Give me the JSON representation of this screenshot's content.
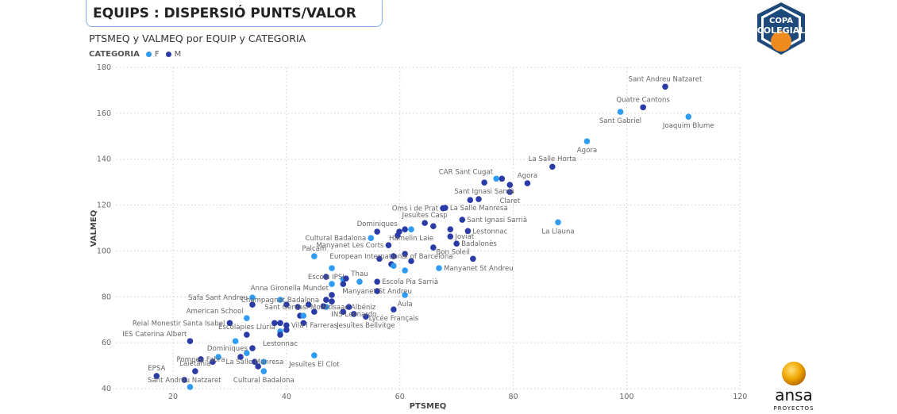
{
  "header": {
    "title": "EQUIPS : DISPERSIÓ PUNTS/VALOR",
    "subtitle": "PTSMEQ y VALMEQ por EQUIP y CATEGORIA"
  },
  "logos": {
    "copa": [
      "COPA",
      "COLEGIAL"
    ],
    "ansa": [
      "ansa",
      "PROYECTOS"
    ]
  },
  "colors": {
    "F": "#2e9bf5",
    "M": "#2a3aa6",
    "grid": "#cfcfcf"
  },
  "chart_data": {
    "type": "scatter",
    "title": "PTSMEQ y VALMEQ por EQUIP y CATEGORIA",
    "xlabel": "PTSMEQ",
    "ylabel": "VALMEQ",
    "xlim": [
      10,
      120
    ],
    "ylim": [
      40,
      180
    ],
    "xticks": [
      20,
      40,
      60,
      80,
      100,
      120
    ],
    "yticks": [
      40,
      60,
      80,
      100,
      120,
      140,
      160,
      180
    ],
    "legend": {
      "title": "CATEGORIA",
      "entries": [
        "F",
        "M"
      ],
      "placement": "top-left"
    },
    "points": [
      {
        "x": 106.8,
        "y": 171.6,
        "c": "M",
        "label": "Sant Andreu Natzaret",
        "anchor": "t"
      },
      {
        "x": 102.9,
        "y": 162.6,
        "c": "M",
        "label": "Quatre Cantons",
        "anchor": "t"
      },
      {
        "x": 98.9,
        "y": 160.6,
        "c": "F",
        "label": "Sant Gabriel",
        "anchor": "b"
      },
      {
        "x": 110.9,
        "y": 158.5,
        "c": "F",
        "label": "Joaquim Blume",
        "anchor": "b"
      },
      {
        "x": 93.0,
        "y": 147.8,
        "c": "F",
        "label": "Agora",
        "anchor": "b"
      },
      {
        "x": 86.9,
        "y": 136.7,
        "c": "M",
        "label": "La Salle Horta",
        "anchor": "t"
      },
      {
        "x": 77.0,
        "y": 131.5,
        "c": "F",
        "label": "CAR Sant Cugat",
        "anchor": "tl"
      },
      {
        "x": 78.0,
        "y": 131.5,
        "c": "M",
        "label": "",
        "anchor": "t"
      },
      {
        "x": 74.9,
        "y": 129.8,
        "c": "M",
        "label": "Sant Ignasi Sarrià",
        "anchor": "b"
      },
      {
        "x": 79.4,
        "y": 128.8,
        "c": "M",
        "label": "",
        "anchor": "t"
      },
      {
        "x": 82.5,
        "y": 129.5,
        "c": "M",
        "label": "Agora",
        "anchor": "t"
      },
      {
        "x": 79.4,
        "y": 125.7,
        "c": "M",
        "label": "Claret",
        "anchor": "b"
      },
      {
        "x": 72.4,
        "y": 122.2,
        "c": "M",
        "label": "",
        "anchor": "t"
      },
      {
        "x": 73.9,
        "y": 122.6,
        "c": "M",
        "label": "",
        "anchor": "t"
      },
      {
        "x": 67.6,
        "y": 118.6,
        "c": "M",
        "label": "Oms i de Prat",
        "anchor": "l"
      },
      {
        "x": 68.0,
        "y": 118.8,
        "c": "M",
        "label": "La Salle Manresa",
        "anchor": "r"
      },
      {
        "x": 87.9,
        "y": 112.5,
        "c": "F",
        "label": "La Llauna",
        "anchor": "b"
      },
      {
        "x": 71.0,
        "y": 113.6,
        "c": "M",
        "label": "Sant Ignasi Sarrià",
        "anchor": "r"
      },
      {
        "x": 72.0,
        "y": 108.7,
        "c": "M",
        "label": "Lestonnac",
        "anchor": "r"
      },
      {
        "x": 64.4,
        "y": 112.2,
        "c": "M",
        "label": "Jesuïtes Casp",
        "anchor": "t"
      },
      {
        "x": 65.9,
        "y": 110.8,
        "c": "M",
        "label": "",
        "anchor": "t"
      },
      {
        "x": 68.9,
        "y": 109.4,
        "c": "M",
        "label": "",
        "anchor": "t"
      },
      {
        "x": 68.9,
        "y": 106.3,
        "c": "M",
        "label": "Joviat",
        "anchor": "r"
      },
      {
        "x": 70.0,
        "y": 103.2,
        "c": "M",
        "label": "Badalonès",
        "anchor": "r"
      },
      {
        "x": 65.9,
        "y": 101.5,
        "c": "M",
        "label": "",
        "anchor": "t"
      },
      {
        "x": 56.0,
        "y": 108.4,
        "c": "M",
        "label": "Dominiques",
        "anchor": "t"
      },
      {
        "x": 59.9,
        "y": 108.4,
        "c": "M",
        "label": "",
        "anchor": "t"
      },
      {
        "x": 60.9,
        "y": 109.4,
        "c": "M",
        "label": "",
        "anchor": "t"
      },
      {
        "x": 62.0,
        "y": 109.4,
        "c": "F",
        "label": "Hamelin Laie",
        "anchor": "b"
      },
      {
        "x": 59.6,
        "y": 106.7,
        "c": "M",
        "label": "",
        "anchor": "t"
      },
      {
        "x": 54.9,
        "y": 105.6,
        "c": "F",
        "label": "Cultural Badalona",
        "anchor": "l"
      },
      {
        "x": 58.0,
        "y": 102.5,
        "c": "M",
        "label": "Manyanet Les Corts",
        "anchor": "l"
      },
      {
        "x": 72.9,
        "y": 96.6,
        "c": "M",
        "label": "Bon Soleil",
        "anchor": "tl"
      },
      {
        "x": 66.9,
        "y": 92.5,
        "c": "F",
        "label": "Manyanet St Andreu",
        "anchor": "r"
      },
      {
        "x": 56.4,
        "y": 96.6,
        "c": "M",
        "label": "",
        "anchor": "t"
      },
      {
        "x": 58.9,
        "y": 97.7,
        "c": "M",
        "label": "",
        "anchor": "t"
      },
      {
        "x": 60.9,
        "y": 98.7,
        "c": "M",
        "label": "",
        "anchor": "t"
      },
      {
        "x": 62.0,
        "y": 95.6,
        "c": "M",
        "label": "",
        "anchor": "t"
      },
      {
        "x": 58.5,
        "y": 94.2,
        "c": "M",
        "label": "European International of Barcelona",
        "anchor": "t"
      },
      {
        "x": 58.9,
        "y": 93.5,
        "c": "F",
        "label": "",
        "anchor": "t"
      },
      {
        "x": 60.9,
        "y": 91.5,
        "c": "F",
        "label": "",
        "anchor": "t"
      },
      {
        "x": 48.0,
        "y": 92.5,
        "c": "F",
        "label": "",
        "anchor": "t"
      },
      {
        "x": 44.9,
        "y": 97.7,
        "c": "F",
        "label": "Palcam",
        "anchor": "t"
      },
      {
        "x": 47.0,
        "y": 88.7,
        "c": "M",
        "label": "Escola IPSI",
        "anchor": "c"
      },
      {
        "x": 50.0,
        "y": 87.7,
        "c": "F",
        "label": "",
        "anchor": "t"
      },
      {
        "x": 50.5,
        "y": 88.0,
        "c": "M",
        "label": "",
        "anchor": "t"
      },
      {
        "x": 50.0,
        "y": 85.6,
        "c": "M",
        "label": "",
        "anchor": "t"
      },
      {
        "x": 48.0,
        "y": 85.6,
        "c": "F",
        "label": "",
        "anchor": "t"
      },
      {
        "x": 52.9,
        "y": 86.6,
        "c": "F",
        "label": "Thau",
        "anchor": "t"
      },
      {
        "x": 56.0,
        "y": 86.6,
        "c": "M",
        "label": "Escola Pia Sarrià",
        "anchor": "r"
      },
      {
        "x": 56.0,
        "y": 82.5,
        "c": "M",
        "label": "Manyanet St Andreu",
        "anchor": "c"
      },
      {
        "x": 60.9,
        "y": 80.8,
        "c": "F",
        "label": "Aula",
        "anchor": "b"
      },
      {
        "x": 58.9,
        "y": 74.5,
        "c": "M",
        "label": "Lycée Français",
        "anchor": "b"
      },
      {
        "x": 48.0,
        "y": 80.8,
        "c": "M",
        "label": "Anna Gironella Mundet",
        "anchor": "tl"
      },
      {
        "x": 47.0,
        "y": 78.7,
        "c": "M",
        "label": "",
        "anchor": "t"
      },
      {
        "x": 48.0,
        "y": 78.0,
        "c": "M",
        "label": "",
        "anchor": "t"
      },
      {
        "x": 51.0,
        "y": 75.6,
        "c": "M",
        "label": "",
        "anchor": "t"
      },
      {
        "x": 47.0,
        "y": 75.6,
        "c": "F",
        "label": "Isaac Albéniz",
        "anchor": "r"
      },
      {
        "x": 46.5,
        "y": 75.9,
        "c": "M",
        "label": "",
        "anchor": "t"
      },
      {
        "x": 50.0,
        "y": 73.5,
        "c": "M",
        "label": "",
        "anchor": "t"
      },
      {
        "x": 51.9,
        "y": 72.5,
        "c": "M",
        "label": "INS Leonardo",
        "anchor": "c"
      },
      {
        "x": 54.0,
        "y": 71.4,
        "c": "M",
        "label": "Jesuïtes Bellvitge",
        "anchor": "b"
      },
      {
        "x": 44.9,
        "y": 73.5,
        "c": "M",
        "label": "",
        "anchor": "t"
      },
      {
        "x": 43.9,
        "y": 76.6,
        "c": "M",
        "label": "",
        "anchor": "t"
      },
      {
        "x": 42.0,
        "y": 75.6,
        "c": "M",
        "label": "Sant Gervasi Mollet",
        "anchor": "c"
      },
      {
        "x": 44.9,
        "y": 54.5,
        "c": "F",
        "label": "Jesuïtes El Clot",
        "anchor": "b"
      },
      {
        "x": 34.0,
        "y": 79.7,
        "c": "F",
        "label": "Safa Sant Andreu",
        "anchor": "l"
      },
      {
        "x": 34.0,
        "y": 76.6,
        "c": "M",
        "label": "",
        "anchor": "t"
      },
      {
        "x": 38.9,
        "y": 78.7,
        "c": "F",
        "label": "Champagnat Badalona",
        "anchor": "c"
      },
      {
        "x": 40.0,
        "y": 76.6,
        "c": "M",
        "label": "",
        "anchor": "t"
      },
      {
        "x": 42.4,
        "y": 71.8,
        "c": "M",
        "label": "",
        "anchor": "t"
      },
      {
        "x": 43.0,
        "y": 71.8,
        "c": "F",
        "label": "",
        "anchor": "t"
      },
      {
        "x": 33.0,
        "y": 70.7,
        "c": "F",
        "label": "American School",
        "anchor": "tl"
      },
      {
        "x": 30.0,
        "y": 68.6,
        "c": "M",
        "label": "Reial Monestir Santa Isabel",
        "anchor": "l"
      },
      {
        "x": 33.0,
        "y": 63.5,
        "c": "M",
        "label": "Escolàpies Llúria",
        "anchor": "t"
      },
      {
        "x": 37.9,
        "y": 68.6,
        "c": "M",
        "label": "",
        "anchor": "t"
      },
      {
        "x": 38.9,
        "y": 68.6,
        "c": "M",
        "label": "",
        "anchor": "t"
      },
      {
        "x": 40.0,
        "y": 67.6,
        "c": "M",
        "label": "Vila i Farreras",
        "anchor": "r"
      },
      {
        "x": 40.0,
        "y": 65.6,
        "c": "M",
        "label": "",
        "anchor": "t"
      },
      {
        "x": 43.0,
        "y": 68.6,
        "c": "M",
        "label": "",
        "anchor": "t"
      },
      {
        "x": 38.9,
        "y": 64.9,
        "c": "F",
        "label": "",
        "anchor": "t"
      },
      {
        "x": 38.9,
        "y": 63.5,
        "c": "M",
        "label": "Lestonnac",
        "anchor": "b"
      },
      {
        "x": 23.0,
        "y": 60.7,
        "c": "M",
        "label": "IES Caterina Albert",
        "anchor": "tl"
      },
      {
        "x": 31.0,
        "y": 60.7,
        "c": "F",
        "label": "",
        "anchor": "t"
      },
      {
        "x": 34.0,
        "y": 57.6,
        "c": "M",
        "label": "Dominiques",
        "anchor": "l"
      },
      {
        "x": 33.0,
        "y": 55.5,
        "c": "F",
        "label": "",
        "anchor": "t"
      },
      {
        "x": 24.9,
        "y": 52.8,
        "c": "M",
        "label": "Pompeu Fabra",
        "anchor": "c"
      },
      {
        "x": 28.0,
        "y": 53.8,
        "c": "F",
        "label": "",
        "anchor": "t"
      },
      {
        "x": 27.0,
        "y": 51.7,
        "c": "M",
        "label": "",
        "anchor": "t"
      },
      {
        "x": 31.9,
        "y": 53.8,
        "c": "M",
        "label": "",
        "anchor": "t"
      },
      {
        "x": 34.4,
        "y": 51.7,
        "c": "M",
        "label": "La Salle Manresa",
        "anchor": "c"
      },
      {
        "x": 36.0,
        "y": 51.7,
        "c": "F",
        "label": "",
        "anchor": "t"
      },
      {
        "x": 35.0,
        "y": 49.7,
        "c": "M",
        "label": "",
        "anchor": "t"
      },
      {
        "x": 36.0,
        "y": 47.6,
        "c": "F",
        "label": "Cultural Badalona",
        "anchor": "b"
      },
      {
        "x": 23.9,
        "y": 47.6,
        "c": "M",
        "label": "Laietània",
        "anchor": "t"
      },
      {
        "x": 17.1,
        "y": 45.5,
        "c": "M",
        "label": "EPSA",
        "anchor": "t"
      },
      {
        "x": 22.0,
        "y": 43.8,
        "c": "M",
        "label": "Sant Andreu Natzaret",
        "anchor": "c"
      },
      {
        "x": 23.0,
        "y": 40.7,
        "c": "F",
        "label": "",
        "anchor": "t"
      }
    ]
  }
}
